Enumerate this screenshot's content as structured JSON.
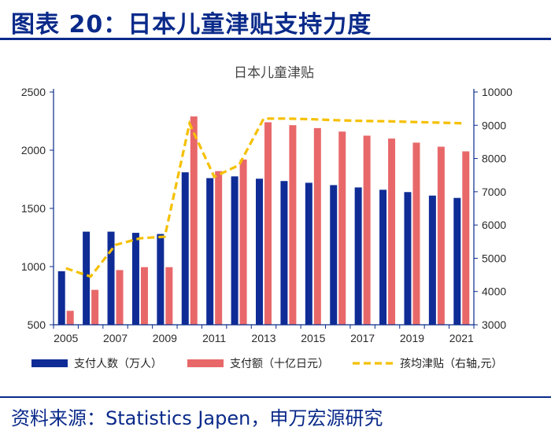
{
  "figure_title": "图表 20：日本儿童津贴支持力度",
  "source": "资料来源：Statistics Japen，申万宏源研究",
  "colors": {
    "people": "#0f2c96",
    "amount": "#e8686a",
    "per_child": "#f5c000",
    "axis": "#0a2a8a",
    "header": "#0a2a8a"
  },
  "chart_data": {
    "type": "bar",
    "title": "日本儿童津贴",
    "categories": [
      "2005",
      "2006",
      "2007",
      "2008",
      "2009",
      "2010",
      "2011",
      "2012",
      "2013",
      "2014",
      "2015",
      "2016",
      "2017",
      "2018",
      "2019",
      "2020",
      "2021"
    ],
    "x_tick_labels": [
      "2005",
      "2007",
      "2009",
      "2011",
      "2013",
      "2015",
      "2017",
      "2019",
      "2021"
    ],
    "y_left": {
      "min": 500,
      "max": 2500,
      "ticks": [
        500,
        1000,
        1500,
        2000,
        2500
      ]
    },
    "y_right": {
      "min": 3000,
      "max": 10000,
      "ticks": [
        3000,
        4000,
        5000,
        6000,
        7000,
        8000,
        9000,
        10000
      ]
    },
    "series": [
      {
        "name": "支付人数（万人）",
        "type": "bar",
        "axis": "left",
        "values": [
          960,
          1300,
          1300,
          1290,
          1280,
          1810,
          1760,
          1775,
          1755,
          1735,
          1720,
          1700,
          1680,
          1660,
          1640,
          1610,
          1590
        ]
      },
      {
        "name": "支付额（十亿日元）",
        "type": "bar",
        "axis": "left",
        "values": [
          620,
          800,
          970,
          995,
          995,
          2290,
          1820,
          1920,
          2240,
          2215,
          2190,
          2160,
          2125,
          2100,
          2065,
          2030,
          1990
        ]
      },
      {
        "name": "孩均津贴（右轴,元）",
        "type": "line",
        "axis": "right",
        "values": [
          4700,
          4450,
          5400,
          5600,
          5650,
          9050,
          7450,
          7800,
          9200,
          9200,
          9180,
          9150,
          9130,
          9120,
          9100,
          9080,
          9060
        ]
      }
    ]
  }
}
